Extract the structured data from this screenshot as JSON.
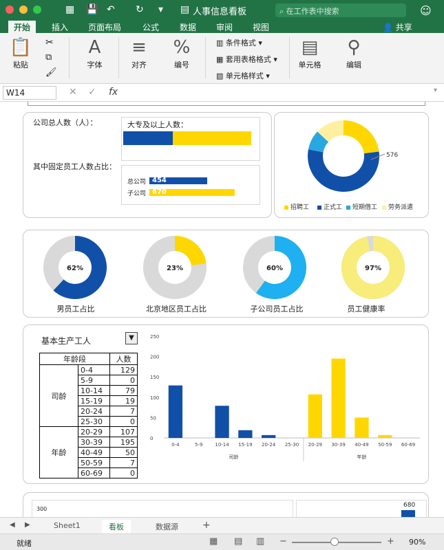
{
  "window": {
    "title": "人事信息看板",
    "search_placeholder": "在工作表中搜索"
  },
  "menu": {
    "tabs": [
      "开始",
      "插入",
      "页面布局",
      "公式",
      "数据",
      "审阅",
      "视图"
    ],
    "share": "共享"
  },
  "ribbon": {
    "paste": "粘贴",
    "font": "字体",
    "align": "对齐",
    "number": "编号",
    "cond_format": "条件格式",
    "table_format": "套用表格格式",
    "cell_style": "单元格样式",
    "cell": "单元格",
    "edit": "编辑"
  },
  "formula": {
    "cell_ref": "W14",
    "fx": "fx"
  },
  "dashboard": {
    "total_label": "公司总人数（人）：",
    "fixed_ratio_label": "其中固定员工人数占比：",
    "college_label": "大专及以上人数：",
    "hq_label": "总公司",
    "sub_label": "子公司",
    "hq_value": "454",
    "sub_value": "670",
    "type_donut": {
      "slices": [
        {
          "name": "招聘工",
          "value": 23,
          "color": "#ffd700"
        },
        {
          "name": "正式工",
          "value": 55,
          "color": "#1150a8"
        },
        {
          "name": "短期借工",
          "value": 9,
          "color": "#29a8e0"
        },
        {
          "name": "劳务派遣",
          "value": 13,
          "color": "#fff0a0"
        }
      ],
      "callout": "576"
    },
    "ratios": [
      {
        "label": "男员工占比",
        "pct": 62,
        "text": "62%",
        "color": "#1150a8"
      },
      {
        "label": "北京地区员工占比",
        "pct": 23,
        "text": "23%",
        "color": "#ffd700"
      },
      {
        "label": "子公司员工占比",
        "pct": 60,
        "text": "60%",
        "color": "#1eb0f0"
      },
      {
        "label": "员工健康率",
        "pct": 97,
        "text": "97%",
        "color": "#f8ec7a"
      }
    ],
    "dropdown": "基本生产工人",
    "age_table": {
      "header_group": "年龄段",
      "header_count": "人数",
      "group1": "司龄",
      "group2": "年龄",
      "rows1": [
        [
          "0-4",
          "129"
        ],
        [
          "5-9",
          "0"
        ],
        [
          "10-14",
          "79"
        ],
        [
          "15-19",
          "19"
        ],
        [
          "20-24",
          "7"
        ],
        [
          "25-30",
          "0"
        ]
      ],
      "rows2": [
        [
          "20-29",
          "107"
        ],
        [
          "30-39",
          "195"
        ],
        [
          "40-49",
          "50"
        ],
        [
          "50-59",
          "7"
        ],
        [
          "60-69",
          "0"
        ]
      ]
    },
    "bottom": {
      "left_value": "300",
      "right_value": "680"
    }
  },
  "chart_data": {
    "type": "bar",
    "categories": [
      "0-4",
      "5-9",
      "10-14",
      "15-19",
      "20-24",
      "25-30",
      "20-29",
      "30-39",
      "40-49",
      "50-59",
      "60-69"
    ],
    "values": [
      129,
      0,
      79,
      19,
      7,
      0,
      107,
      195,
      50,
      7,
      0
    ],
    "groups": [
      "司龄",
      "年龄"
    ],
    "ylim": [
      0,
      250
    ],
    "yticks": [
      "0",
      "50",
      "100",
      "150",
      "200",
      "250"
    ],
    "colors": {
      "司龄": "#1150a8",
      "年龄": "#ffd700"
    }
  },
  "sheets": {
    "tabs": [
      "Sheet1",
      "看板",
      "数据源"
    ],
    "add": "+"
  },
  "status": {
    "ready": "就绪",
    "zoom": "90%"
  }
}
